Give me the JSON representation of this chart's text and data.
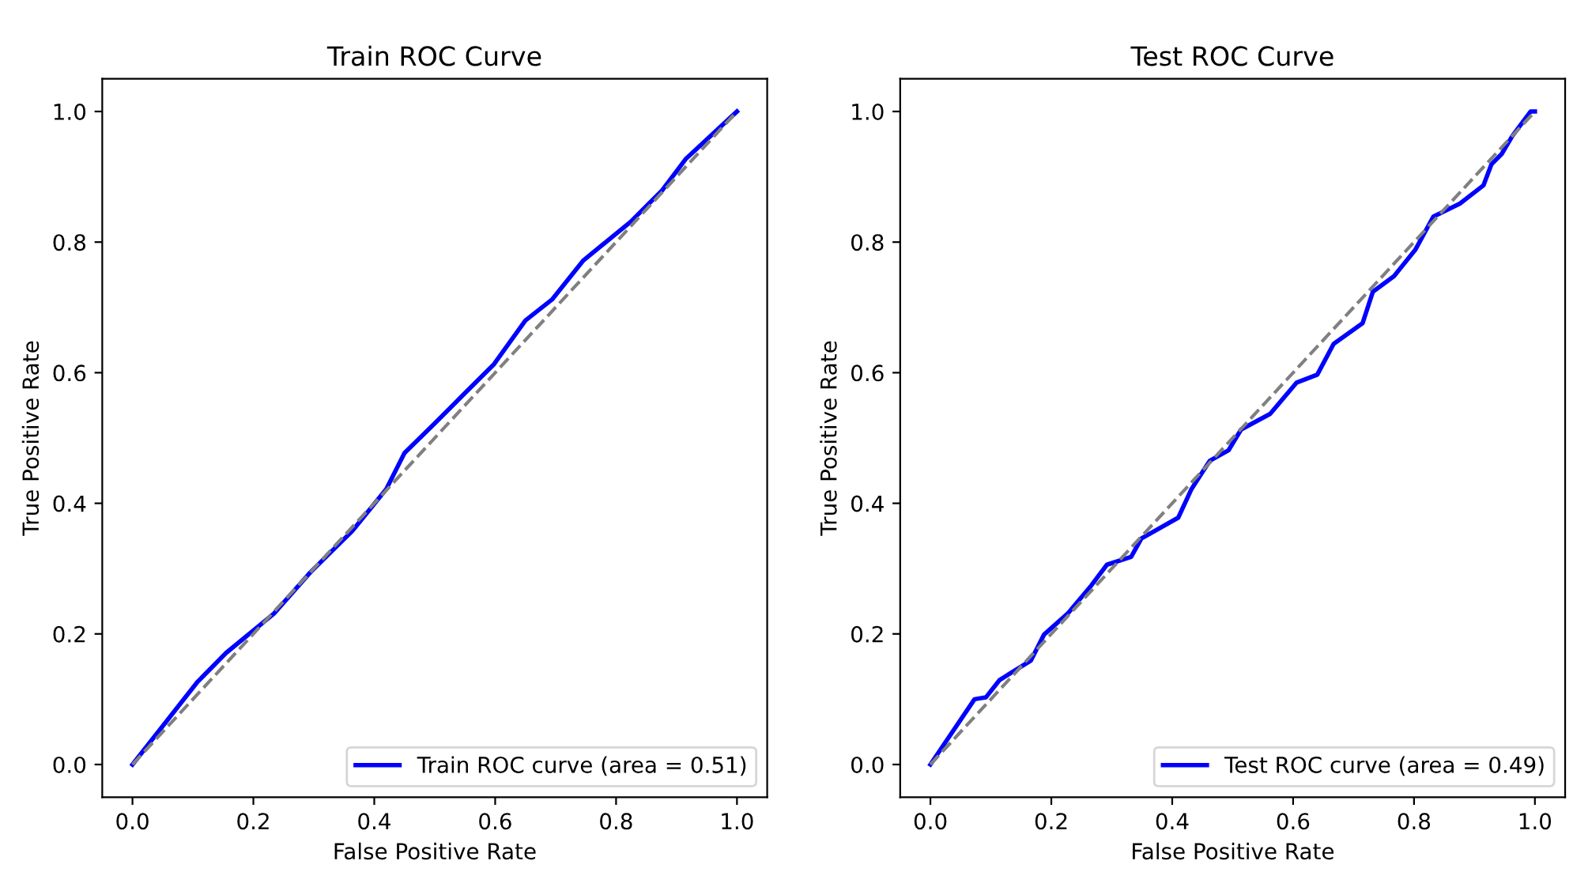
{
  "chart_data": [
    {
      "type": "line",
      "title": "Train ROC Curve",
      "xlabel": "False Positive Rate",
      "ylabel": "True Positive Rate",
      "xlim": [
        -0.05,
        1.05
      ],
      "ylim": [
        -0.05,
        1.05
      ],
      "xticks": [
        {
          "value": 0,
          "label": "0.0"
        },
        {
          "value": 0.2,
          "label": "0.2"
        },
        {
          "value": 0.4,
          "label": "0.4"
        },
        {
          "value": 0.6,
          "label": "0.6"
        },
        {
          "value": 0.8,
          "label": "0.8"
        },
        {
          "value": 1,
          "label": "1.0"
        }
      ],
      "yticks": [
        {
          "value": 0,
          "label": "0.0"
        },
        {
          "value": 0.2,
          "label": "0.2"
        },
        {
          "value": 0.4,
          "label": "0.4"
        },
        {
          "value": 0.6,
          "label": "0.6"
        },
        {
          "value": 0.8,
          "label": "0.8"
        },
        {
          "value": 1,
          "label": "1.0"
        }
      ],
      "legend": "bottom right",
      "grid": false,
      "series": [
        {
          "name": "Train ROC curve (area = 0.51)",
          "color": "#0000ff",
          "line_style": "solid",
          "x": [
            0,
            0.108,
            0.155,
            0.234,
            0.294,
            0.364,
            0.42,
            0.45,
            0.503,
            0.546,
            0.598,
            0.65,
            0.694,
            0.746,
            0.824,
            0.876,
            0.915,
            1
          ],
          "values": [
            0,
            0.127,
            0.171,
            0.231,
            0.294,
            0.358,
            0.422,
            0.477,
            0.525,
            0.565,
            0.613,
            0.68,
            0.712,
            0.772,
            0.831,
            0.879,
            0.927,
            1
          ]
        },
        {
          "color": "#808080",
          "line_style": "dashed",
          "x": [
            0,
            1
          ],
          "values": [
            0,
            1
          ]
        }
      ]
    },
    {
      "type": "line",
      "title": "Test ROC Curve",
      "xlabel": "False Positive Rate",
      "ylabel": "True Positive Rate",
      "xlim": [
        -0.05,
        1.05
      ],
      "ylim": [
        -0.05,
        1.05
      ],
      "xticks": [
        {
          "value": 0,
          "label": "0.0"
        },
        {
          "value": 0.2,
          "label": "0.2"
        },
        {
          "value": 0.4,
          "label": "0.4"
        },
        {
          "value": 0.6,
          "label": "0.6"
        },
        {
          "value": 0.8,
          "label": "0.8"
        },
        {
          "value": 1,
          "label": "1.0"
        }
      ],
      "yticks": [
        {
          "value": 0,
          "label": "0.0"
        },
        {
          "value": 0.2,
          "label": "0.2"
        },
        {
          "value": 0.4,
          "label": "0.4"
        },
        {
          "value": 0.6,
          "label": "0.6"
        },
        {
          "value": 0.8,
          "label": "0.8"
        },
        {
          "value": 1,
          "label": "1.0"
        }
      ],
      "legend": "bottom right",
      "grid": false,
      "series": [
        {
          "name": "Test ROC curve (area = 0.49)",
          "color": "#0000ff",
          "line_style": "solid",
          "x": [
            0,
            0.073,
            0.092,
            0.114,
            0.131,
            0.166,
            0.188,
            0.227,
            0.266,
            0.292,
            0.332,
            0.349,
            0.41,
            0.432,
            0.462,
            0.493,
            0.514,
            0.562,
            0.606,
            0.64,
            0.667,
            0.715,
            0.732,
            0.767,
            0.802,
            0.832,
            0.876,
            0.915,
            0.928,
            0.945,
            0.963,
            0.993,
            1
          ],
          "values": [
            0,
            0.1,
            0.103,
            0.129,
            0.139,
            0.159,
            0.199,
            0.231,
            0.274,
            0.306,
            0.318,
            0.346,
            0.378,
            0.422,
            0.465,
            0.481,
            0.513,
            0.537,
            0.585,
            0.597,
            0.644,
            0.676,
            0.724,
            0.748,
            0.788,
            0.839,
            0.859,
            0.887,
            0.919,
            0.935,
            0.963,
            1,
            1
          ]
        },
        {
          "color": "#808080",
          "line_style": "dashed",
          "x": [
            0,
            1
          ],
          "values": [
            0,
            1
          ]
        }
      ]
    }
  ]
}
